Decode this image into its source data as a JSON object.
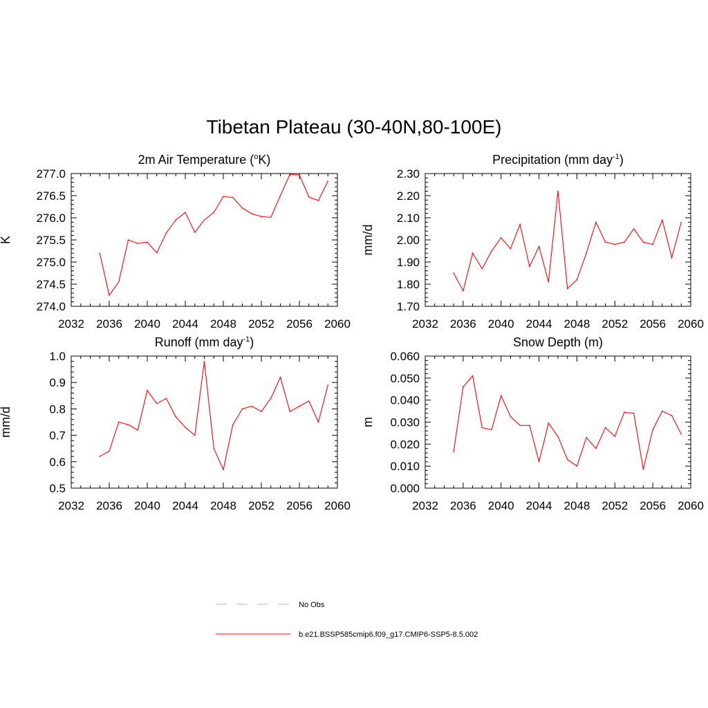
{
  "title": "Tibetan Plateau (30-40N,80-100E)",
  "chart_data": [
    {
      "type": "line",
      "title": "2m Air Temperature (",
      "title_sup": "o",
      "title_tail": "K)",
      "ylabel": "K",
      "xlim": [
        2032,
        2060
      ],
      "ylim": [
        274.0,
        277.0
      ],
      "xticks": [
        2032,
        2036,
        2040,
        2044,
        2048,
        2052,
        2056,
        2060
      ],
      "yticks": [
        "274.0",
        "274.5",
        "275.0",
        "275.5",
        "276.0",
        "276.5",
        "277.0"
      ],
      "x": [
        2035,
        2036,
        2037,
        2038,
        2039,
        2040,
        2041,
        2042,
        2043,
        2044,
        2045,
        2046,
        2047,
        2048,
        2049,
        2050,
        2051,
        2052,
        2053,
        2054,
        2055,
        2056,
        2057,
        2058,
        2059
      ],
      "values": [
        275.2,
        274.25,
        274.55,
        275.5,
        275.42,
        275.45,
        275.21,
        275.66,
        275.95,
        276.12,
        275.67,
        275.95,
        276.12,
        276.48,
        276.46,
        276.22,
        276.09,
        276.03,
        276.01,
        276.5,
        276.98,
        276.97,
        276.47,
        276.39,
        276.83
      ]
    },
    {
      "type": "line",
      "title": "Precipitation (mm day",
      "title_sup": "-1",
      "title_tail": ")",
      "ylabel": "mm/d",
      "xlim": [
        2032,
        2060
      ],
      "ylim": [
        1.7,
        2.3
      ],
      "xticks": [
        2032,
        2036,
        2040,
        2044,
        2048,
        2052,
        2056,
        2060
      ],
      "yticks": [
        "1.70",
        "1.80",
        "1.90",
        "2.00",
        "2.10",
        "2.20",
        "2.30"
      ],
      "x": [
        2035,
        2036,
        2037,
        2038,
        2039,
        2040,
        2041,
        2042,
        2043,
        2044,
        2045,
        2046,
        2047,
        2048,
        2049,
        2050,
        2051,
        2052,
        2053,
        2054,
        2055,
        2056,
        2057,
        2058,
        2059
      ],
      "values": [
        1.85,
        1.77,
        1.94,
        1.87,
        1.95,
        2.01,
        1.96,
        2.07,
        1.88,
        1.97,
        1.81,
        2.22,
        1.78,
        1.82,
        1.94,
        2.08,
        1.99,
        1.98,
        1.99,
        2.05,
        1.99,
        1.98,
        2.09,
        1.92,
        2.08
      ]
    },
    {
      "type": "line",
      "title": "Runoff (mm day",
      "title_sup": "-1",
      "title_tail": ")",
      "ylabel": "mm/d",
      "xlim": [
        2032,
        2060
      ],
      "ylim": [
        0.5,
        1.0
      ],
      "xticks": [
        2032,
        2036,
        2040,
        2044,
        2048,
        2052,
        2056,
        2060
      ],
      "yticks": [
        "0.5",
        "0.6",
        "0.7",
        "0.8",
        "0.9",
        "1.0"
      ],
      "x": [
        2035,
        2036,
        2037,
        2038,
        2039,
        2040,
        2041,
        2042,
        2043,
        2044,
        2045,
        2046,
        2047,
        2048,
        2049,
        2050,
        2051,
        2052,
        2053,
        2054,
        2055,
        2056,
        2057,
        2058,
        2059
      ],
      "values": [
        0.62,
        0.64,
        0.75,
        0.74,
        0.72,
        0.87,
        0.82,
        0.84,
        0.77,
        0.73,
        0.7,
        0.98,
        0.65,
        0.57,
        0.74,
        0.8,
        0.81,
        0.79,
        0.84,
        0.92,
        0.79,
        0.81,
        0.83,
        0.75,
        0.89
      ]
    },
    {
      "type": "line",
      "title": "Snow Depth (m)",
      "title_sup": "",
      "title_tail": "",
      "ylabel": "m",
      "xlim": [
        2032,
        2060
      ],
      "ylim": [
        0.0,
        0.06
      ],
      "xticks": [
        2032,
        2036,
        2040,
        2044,
        2048,
        2052,
        2056,
        2060
      ],
      "yticks": [
        "0.000",
        "0.010",
        "0.020",
        "0.030",
        "0.040",
        "0.050",
        "0.060"
      ],
      "x": [
        2035,
        2036,
        2037,
        2038,
        2039,
        2040,
        2041,
        2042,
        2043,
        2044,
        2045,
        2046,
        2047,
        2048,
        2049,
        2050,
        2051,
        2052,
        2053,
        2054,
        2055,
        2056,
        2057,
        2058,
        2059
      ],
      "values": [
        0.0165,
        0.046,
        0.051,
        0.0275,
        0.0265,
        0.042,
        0.0325,
        0.0285,
        0.0285,
        0.012,
        0.0295,
        0.0235,
        0.013,
        0.01,
        0.023,
        0.018,
        0.0275,
        0.0235,
        0.0345,
        0.034,
        0.0085,
        0.0265,
        0.035,
        0.033,
        0.0245
      ]
    }
  ],
  "legend": [
    {
      "label": "No Obs",
      "color": "#aaaaff",
      "style": "dashed"
    },
    {
      "label": "b.e21.BSSP585cmip6.f09_g17.CMIP6-SSP5-8.5.002",
      "color": "#ff0000",
      "style": "solid"
    }
  ],
  "colors": {
    "series": "#ff0000",
    "axis": "#000000"
  }
}
